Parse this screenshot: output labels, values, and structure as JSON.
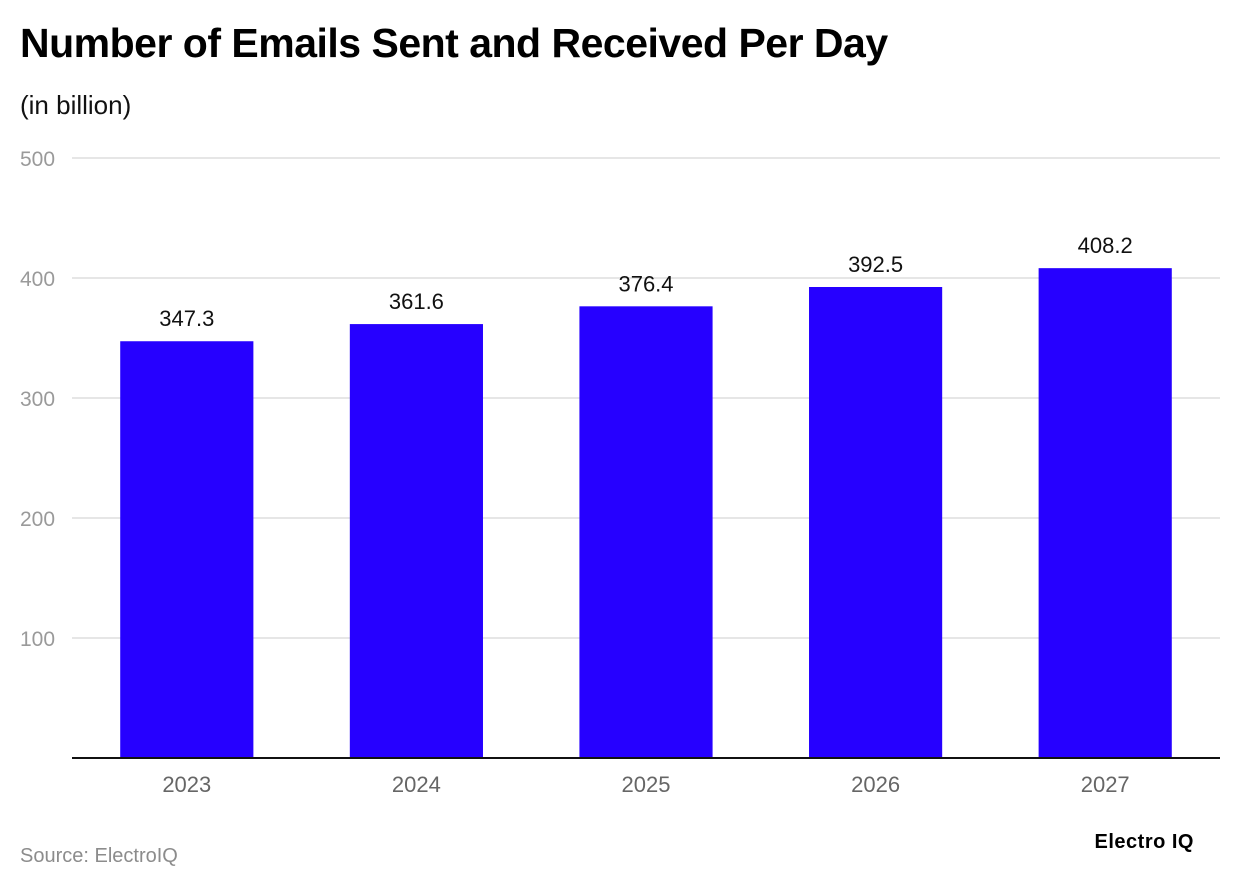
{
  "chart_data": {
    "type": "bar",
    "title": "Number of Emails Sent and Received Per Day",
    "subtitle": "(in billion)",
    "categories": [
      "2023",
      "2024",
      "2025",
      "2026",
      "2027"
    ],
    "values": [
      347.3,
      361.6,
      376.4,
      392.5,
      408.2
    ],
    "value_labels": [
      "347.3",
      "361.6",
      "376.4",
      "392.5",
      "408.2"
    ],
    "ylim": [
      0,
      500
    ],
    "yticks": [
      100,
      200,
      300,
      400,
      500
    ],
    "grid": true,
    "bar_color": "#2600ff"
  },
  "footer": {
    "source": "Source: ElectroIQ",
    "brand": "Electro IQ"
  }
}
